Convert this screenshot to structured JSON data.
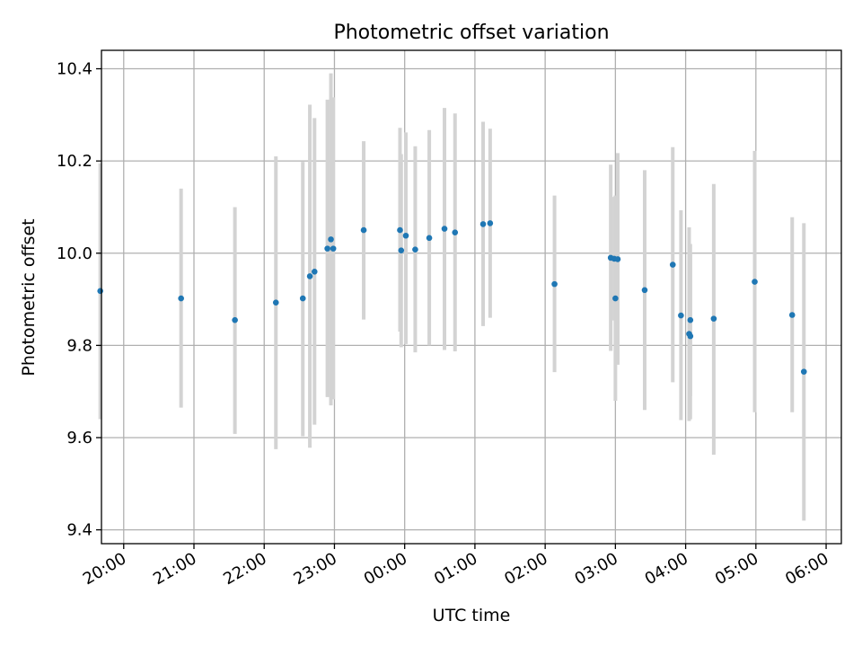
{
  "chart_data": {
    "type": "scatter",
    "title": "Photometric offset variation",
    "xlabel": "UTC time",
    "ylabel": "Photometric offset",
    "x_tick_labels": [
      "20:00",
      "21:00",
      "22:00",
      "23:00",
      "00:00",
      "01:00",
      "02:00",
      "03:00",
      "04:00",
      "05:00",
      "06:00"
    ],
    "y_tick_labels": [
      "9.4",
      "9.6",
      "9.8",
      "10.0",
      "10.2",
      "10.4"
    ],
    "y_ticks": [
      9.4,
      9.6,
      9.8,
      10.0,
      10.2,
      10.4
    ],
    "ylim": [
      9.37,
      10.44
    ],
    "xlim": [
      "19:41",
      "06:13"
    ],
    "grid": true,
    "colors": {
      "points": "#1f77b4",
      "error_bars": "#d3d3d3",
      "grid": "#b0b0b0"
    },
    "points": [
      {
        "t": "19:40",
        "y": 9.918,
        "lo": 9.64,
        "hi": 10.195
      },
      {
        "t": "20:49",
        "y": 9.902,
        "lo": 9.665,
        "hi": 10.14
      },
      {
        "t": "21:35",
        "y": 9.855,
        "lo": 9.608,
        "hi": 10.1
      },
      {
        "t": "22:10",
        "y": 9.893,
        "lo": 9.575,
        "hi": 10.21
      },
      {
        "t": "22:33",
        "y": 9.902,
        "lo": 9.603,
        "hi": 10.198
      },
      {
        "t": "22:39",
        "y": 9.95,
        "lo": 9.578,
        "hi": 10.322
      },
      {
        "t": "22:43",
        "y": 9.96,
        "lo": 9.628,
        "hi": 10.293
      },
      {
        "t": "22:54",
        "y": 10.01,
        "lo": 9.688,
        "hi": 10.333
      },
      {
        "t": "22:57",
        "y": 10.03,
        "lo": 9.67,
        "hi": 10.39
      },
      {
        "t": "22:59",
        "y": 10.01,
        "lo": 9.683,
        "hi": 10.338
      },
      {
        "t": "23:25",
        "y": 10.05,
        "lo": 9.856,
        "hi": 10.243
      },
      {
        "t": "23:56",
        "y": 10.05,
        "lo": 9.83,
        "hi": 10.272
      },
      {
        "t": "23:57",
        "y": 10.006,
        "lo": 9.796,
        "hi": 10.215
      },
      {
        "t": "00:01",
        "y": 10.038,
        "lo": 9.803,
        "hi": 10.262
      },
      {
        "t": "00:09",
        "y": 10.008,
        "lo": 9.785,
        "hi": 10.232
      },
      {
        "t": "00:21",
        "y": 10.033,
        "lo": 9.8,
        "hi": 10.267
      },
      {
        "t": "00:34",
        "y": 10.053,
        "lo": 9.79,
        "hi": 10.315
      },
      {
        "t": "00:43",
        "y": 10.045,
        "lo": 9.787,
        "hi": 10.303
      },
      {
        "t": "01:07",
        "y": 10.063,
        "lo": 9.842,
        "hi": 10.285
      },
      {
        "t": "01:13",
        "y": 10.065,
        "lo": 9.86,
        "hi": 10.27
      },
      {
        "t": "02:08",
        "y": 9.933,
        "lo": 9.742,
        "hi": 10.125
      },
      {
        "t": "02:56",
        "y": 9.99,
        "lo": 9.788,
        "hi": 10.192
      },
      {
        "t": "02:59",
        "y": 9.988,
        "lo": 9.854,
        "hi": 10.122
      },
      {
        "t": "03:00",
        "y": 9.902,
        "lo": 9.68,
        "hi": 10.125
      },
      {
        "t": "03:02",
        "y": 9.987,
        "lo": 9.758,
        "hi": 10.217
      },
      {
        "t": "03:25",
        "y": 9.92,
        "lo": 9.66,
        "hi": 10.18
      },
      {
        "t": "03:49",
        "y": 9.975,
        "lo": 9.72,
        "hi": 10.23
      },
      {
        "t": "03:56",
        "y": 9.865,
        "lo": 9.638,
        "hi": 10.093
      },
      {
        "t": "04:03",
        "y": 9.825,
        "lo": 9.636,
        "hi": 10.056
      },
      {
        "t": "04:04",
        "y": 9.82,
        "lo": 9.64,
        "hi": 10.0
      },
      {
        "t": "04:04",
        "y": 9.855,
        "lo": 9.69,
        "hi": 10.02
      },
      {
        "t": "04:24",
        "y": 9.858,
        "lo": 9.563,
        "hi": 10.15
      },
      {
        "t": "04:59",
        "y": 9.938,
        "lo": 9.655,
        "hi": 10.222
      },
      {
        "t": "05:31",
        "y": 9.866,
        "lo": 9.655,
        "hi": 10.078
      },
      {
        "t": "05:41",
        "y": 9.743,
        "lo": 9.42,
        "hi": 10.065
      }
    ]
  }
}
